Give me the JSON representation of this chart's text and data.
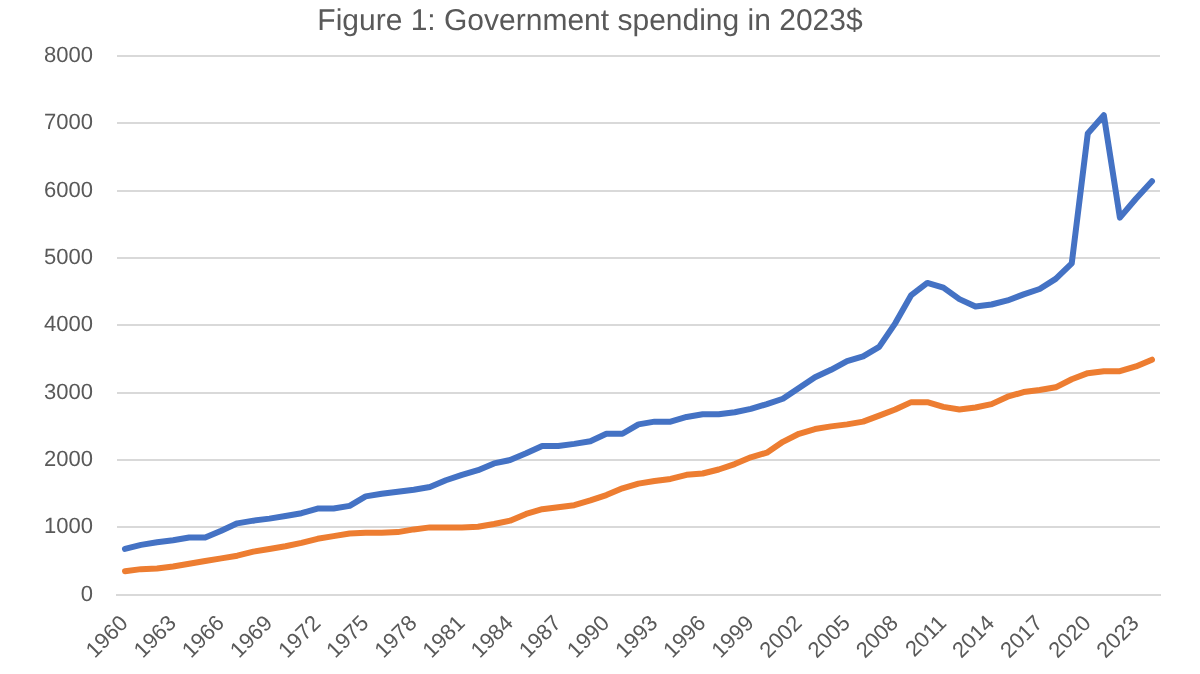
{
  "chart_data": {
    "type": "line",
    "title": "Figure 1: Government spending in 2023$",
    "categories": [
      "1960",
      null,
      null,
      "1963",
      null,
      null,
      "1966",
      null,
      null,
      "1969",
      null,
      null,
      "1972",
      null,
      null,
      "1975",
      null,
      null,
      "1978",
      null,
      null,
      "1981",
      null,
      null,
      "1984",
      null,
      null,
      "1987",
      null,
      null,
      "1990",
      null,
      null,
      "1993",
      null,
      null,
      "1996",
      null,
      null,
      "1999",
      null,
      null,
      "2002",
      null,
      null,
      "2005",
      null,
      null,
      "2008",
      null,
      null,
      "2011",
      null,
      null,
      "2014",
      null,
      null,
      "2017",
      null,
      null,
      "2020",
      null,
      null,
      "2023",
      null
    ],
    "series": [
      {
        "color": "#4472c4",
        "values": [
          680,
          740,
          780,
          810,
          850,
          850,
          950,
          1060,
          1100,
          1130,
          1170,
          1210,
          1280,
          1280,
          1320,
          1460,
          1500,
          1530,
          1560,
          1600,
          1700,
          1780,
          1850,
          1950,
          2000,
          2100,
          2210,
          2210,
          2240,
          2280,
          2390,
          2390,
          2530,
          2570,
          2570,
          2640,
          2680,
          2680,
          2710,
          2760,
          2830,
          2910,
          3070,
          3230,
          3340,
          3470,
          3540,
          3680,
          4030,
          4450,
          4630,
          4560,
          4390,
          4280,
          4310,
          4370,
          4460,
          4540,
          4690,
          4920,
          6850,
          7120,
          5600,
          5880,
          6140
        ]
      },
      {
        "color": "#ed7d31",
        "values": [
          350,
          380,
          390,
          420,
          460,
          500,
          540,
          580,
          640,
          680,
          720,
          770,
          830,
          870,
          910,
          920,
          920,
          930,
          970,
          1000,
          1000,
          1000,
          1010,
          1050,
          1100,
          1200,
          1270,
          1300,
          1330,
          1400,
          1480,
          1580,
          1650,
          1690,
          1720,
          1780,
          1800,
          1860,
          1940,
          2040,
          2110,
          2270,
          2390,
          2460,
          2500,
          2530,
          2570,
          2660,
          2750,
          2860,
          2860,
          2790,
          2750,
          2780,
          2830,
          2940,
          3010,
          3040,
          3080,
          3200,
          3290,
          3320,
          3320,
          3390,
          3490
        ]
      }
    ],
    "ylim": [
      0,
      8000
    ],
    "yticks": [
      0,
      1000,
      2000,
      3000,
      4000,
      5000,
      6000,
      7000,
      8000
    ],
    "grid": "y",
    "legend": false,
    "marker": "none",
    "line_style": "solid"
  }
}
